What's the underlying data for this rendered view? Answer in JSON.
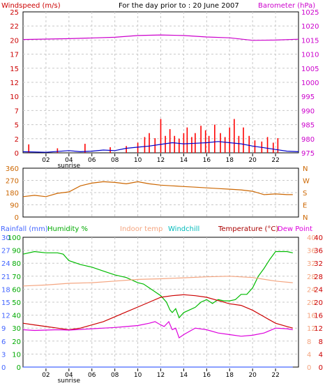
{
  "chart_data": [
    {
      "type": "line",
      "panel": "wind-baro",
      "title": "For the day prior to : 20 June 2007",
      "ylabel_left": "Windspeed (m/s)",
      "ylabel_right": "Barometer (hPa)",
      "x_ticks": [
        "02",
        "04",
        "06",
        "08",
        "10",
        "12",
        "14",
        "16",
        "18",
        "20",
        "22"
      ],
      "x_extra_label": "sunrise",
      "y_left_ticks": [
        "0",
        "2",
        "5",
        "7",
        "10",
        "12",
        "15",
        "17",
        "20",
        "22",
        "25"
      ],
      "y_left_range": [
        0,
        25
      ],
      "y_right_ticks": [
        "975",
        "980",
        "985",
        "990",
        "995",
        "1000",
        "1005",
        "1010",
        "1015",
        "1020",
        "1025"
      ],
      "y_right_range": [
        975,
        1025
      ],
      "series": [
        {
          "name": "Barometer",
          "color": "#cc00cc",
          "x": [
            0,
            4,
            8,
            10,
            12,
            14,
            16,
            18,
            20,
            22,
            24
          ],
          "values": [
            1015.2,
            1015.5,
            1016.0,
            1016.6,
            1016.8,
            1016.6,
            1016.1,
            1015.8,
            1014.9,
            1015.0,
            1015.3
          ]
        },
        {
          "name": "Gust",
          "color": "#ff0000",
          "x": [
            0.5,
            3,
            5.4,
            7.6,
            9,
            10,
            10.6,
            11,
            11.5,
            12,
            12.4,
            12.8,
            13.2,
            13.6,
            14,
            14.3,
            14.7,
            15,
            15.5,
            15.9,
            16.2,
            16.7,
            17.2,
            17.6,
            18,
            18.4,
            18.8,
            19.2,
            19.7,
            20.2,
            20.8,
            21.3,
            21.8,
            22.2
          ],
          "values": [
            1.5,
            0.8,
            1.6,
            1.0,
            1.2,
            1.8,
            2.8,
            3.5,
            2.6,
            6.0,
            3.0,
            4.2,
            3.0,
            2.5,
            3.5,
            4.5,
            2.8,
            3.5,
            4.8,
            4.0,
            3.0,
            5.0,
            3.5,
            2.8,
            4.5,
            6.0,
            3.0,
            4.5,
            3.0,
            2.2,
            2.0,
            2.8,
            1.8,
            2.6
          ]
        },
        {
          "name": "Wind",
          "color": "#0000cc",
          "x": [
            0,
            2,
            4,
            5,
            6,
            7,
            8,
            9,
            10,
            11,
            12,
            13,
            14,
            15,
            16,
            17,
            18,
            19,
            20,
            21,
            22,
            23,
            24
          ],
          "values": [
            0.2,
            0.1,
            0.4,
            0.2,
            0.3,
            0.5,
            0.4,
            0.8,
            1.0,
            1.2,
            1.5,
            1.8,
            1.6,
            1.7,
            1.8,
            2.0,
            1.8,
            1.6,
            1.2,
            0.9,
            0.6,
            0.3,
            0.2
          ]
        }
      ]
    },
    {
      "type": "line",
      "panel": "wind-direction",
      "y_left_ticks": [
        "0",
        "90",
        "180",
        "270",
        "360"
      ],
      "y_left_range": [
        0,
        360
      ],
      "y_right_ticks": [
        "N",
        "E",
        "S",
        "W",
        "N"
      ],
      "series": [
        {
          "name": "Wind Direction",
          "color": "#cc6600",
          "x": [
            0,
            1,
            2,
            3,
            4,
            5,
            6,
            7,
            8,
            9,
            10,
            11,
            12,
            13,
            14,
            15,
            16,
            17,
            18,
            19,
            20,
            21,
            22,
            23,
            23.5
          ],
          "values": [
            150,
            160,
            150,
            175,
            185,
            230,
            250,
            260,
            255,
            245,
            260,
            245,
            235,
            230,
            225,
            220,
            215,
            210,
            205,
            200,
            190,
            165,
            170,
            165,
            165
          ]
        }
      ]
    },
    {
      "type": "line",
      "panel": "temp-humidity",
      "legend": [
        "Rainfall (mm)",
        "Humidity %",
        "Indoor temp",
        "Windchill",
        "Temperature (°C)",
        "Dew Point"
      ],
      "y_rain_ticks": [
        "0",
        "3",
        "6",
        "9",
        "12",
        "15",
        "18",
        "21",
        "24",
        "27",
        "30"
      ],
      "y_rain_range": [
        0,
        30
      ],
      "y_hum_ticks": [
        "0",
        "10",
        "20",
        "30",
        "40",
        "50",
        "60",
        "70",
        "80",
        "90",
        "100"
      ],
      "y_hum_range": [
        0,
        100
      ],
      "y_temp_ticks": [
        "0",
        "4",
        "8",
        "12",
        "16",
        "20",
        "24",
        "28",
        "32",
        "36",
        "40"
      ],
      "y_temp_range": [
        0,
        40
      ],
      "x_ticks": [
        "02",
        "04",
        "06",
        "08",
        "10",
        "12",
        "14",
        "16",
        "18",
        "20",
        "22"
      ],
      "x_extra_label": "sunrise",
      "series": [
        {
          "name": "Humidity %",
          "color": "#00bb00",
          "axis": "hum",
          "x": [
            0,
            1,
            2,
            3,
            3.5,
            4,
            5,
            6,
            7,
            8,
            9,
            9.5,
            10,
            10.5,
            11,
            11.5,
            12,
            12.5,
            12.8,
            13,
            13.3,
            13.6,
            14,
            14.5,
            15,
            15.5,
            16,
            16.5,
            17,
            17.5,
            18,
            18.5,
            19,
            19.5,
            20,
            20.5,
            21,
            21.5,
            22,
            22.5,
            23,
            23.5
          ],
          "values": [
            87,
            89,
            88,
            88,
            87,
            82,
            79,
            77,
            74,
            71,
            69,
            67,
            65,
            64,
            61,
            58,
            55,
            50,
            44,
            42,
            45,
            38,
            42,
            44,
            46,
            50,
            52,
            49,
            52,
            51,
            51,
            52,
            56,
            56,
            61,
            70,
            76,
            83,
            89,
            89,
            89,
            88
          ]
        },
        {
          "name": "Indoor temp",
          "color": "#f4a580",
          "axis": "temp",
          "x": [
            0,
            2,
            4,
            6,
            8,
            10,
            12,
            14,
            16,
            18,
            20,
            22,
            23.5
          ],
          "values": [
            25,
            25.3,
            25.8,
            26,
            26.5,
            27,
            27.2,
            27.5,
            27.8,
            28,
            27.6,
            26.5,
            26
          ]
        },
        {
          "name": "Temperature (°C)",
          "color": "#cc0000",
          "axis": "temp",
          "x": [
            0,
            1,
            2,
            3,
            4,
            5,
            6,
            7,
            8,
            9,
            10,
            11,
            12,
            13,
            14,
            15,
            16,
            17,
            18,
            19,
            20,
            21,
            22,
            23,
            23.5
          ],
          "values": [
            13.5,
            13,
            12.5,
            12,
            11.5,
            12,
            13,
            14,
            15.5,
            17,
            18.5,
            20,
            21.5,
            22,
            22.3,
            22,
            21.5,
            20.5,
            19.5,
            19,
            17.5,
            15.5,
            13.5,
            12.5,
            12
          ]
        },
        {
          "name": "Dew Point",
          "color": "#dd00dd",
          "axis": "temp",
          "x": [
            0,
            1,
            2,
            3,
            4,
            5,
            6,
            7,
            8,
            9,
            10,
            11,
            11.5,
            12,
            12.3,
            12.7,
            13,
            13.3,
            13.6,
            14,
            14.5,
            15,
            16,
            17,
            18,
            19,
            20,
            21,
            22,
            23,
            23.5
          ],
          "values": [
            11.5,
            11.3,
            11.4,
            11.5,
            11.4,
            11.6,
            11.8,
            12,
            12.2,
            12.5,
            12.8,
            13.5,
            14,
            13,
            12.5,
            14,
            11.5,
            12,
            9,
            10,
            11,
            12,
            11.5,
            10.5,
            10,
            9.5,
            9.8,
            10.5,
            12,
            11.8,
            11.5
          ]
        },
        {
          "name": "Rainfall (mm)",
          "color": "#4466ff",
          "axis": "rain",
          "x": [
            0,
            23.5
          ],
          "values": [
            0,
            0
          ]
        }
      ]
    }
  ]
}
